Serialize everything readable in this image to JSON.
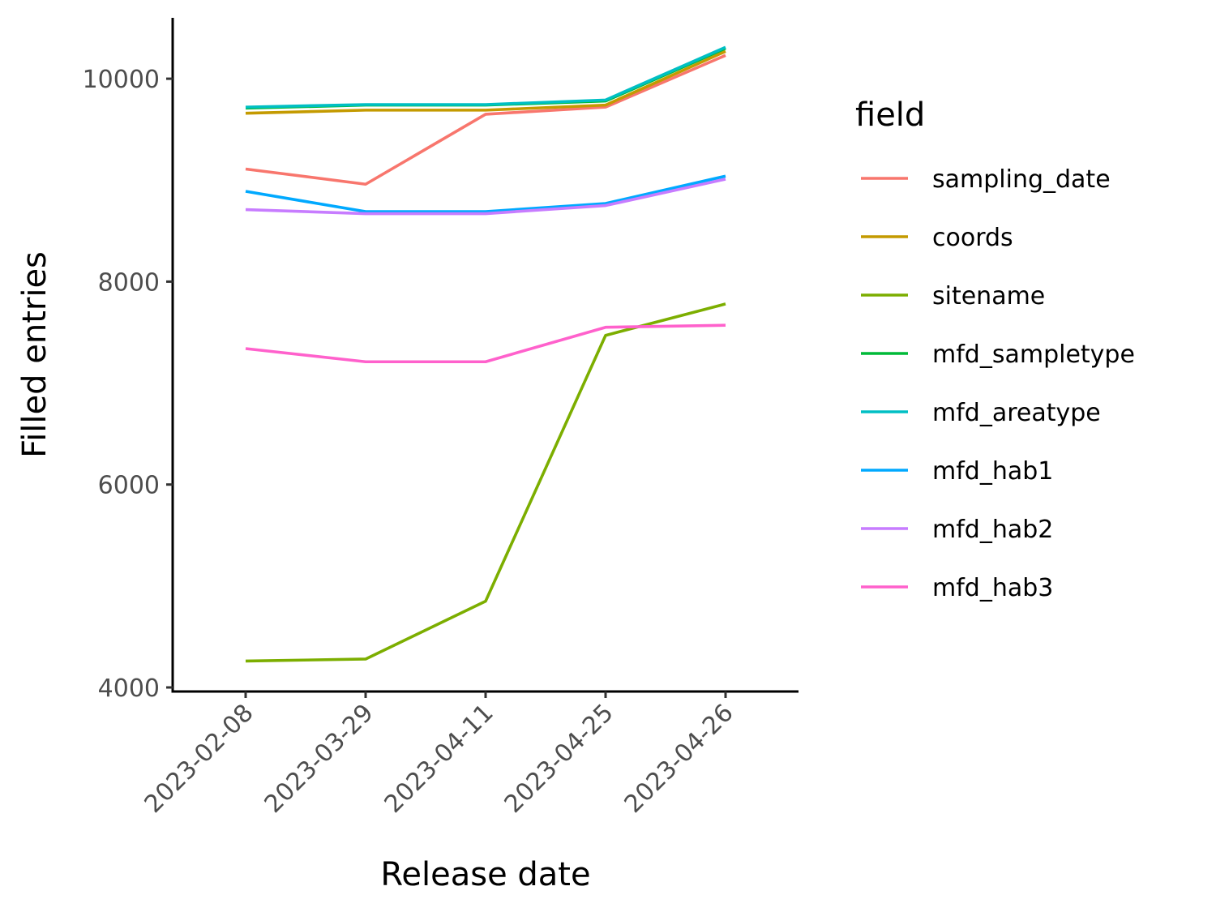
{
  "chart_data": {
    "type": "line",
    "title": "",
    "xlabel": "Release date",
    "ylabel": "Filled entries",
    "categories": [
      "2023-02-08",
      "2023-03-29",
      "2023-04-11",
      "2023-04-25",
      "2023-04-26"
    ],
    "ylim": [
      3960,
      10600
    ],
    "yticks": [
      4000,
      6000,
      8000,
      10000
    ],
    "grid": false,
    "legend": {
      "title": "field",
      "placement": "right"
    },
    "series": [
      {
        "name": "sampling_date",
        "color": "#F8766D",
        "values": [
          9110,
          8960,
          9650,
          9720,
          10230
        ]
      },
      {
        "name": "coords",
        "color": "#C49A00",
        "values": [
          9660,
          9690,
          9690,
          9740,
          10270
        ]
      },
      {
        "name": "sitename",
        "color": "#7CAE00",
        "values": [
          4260,
          4280,
          4850,
          7470,
          7780
        ]
      },
      {
        "name": "mfd_sampletype",
        "color": "#00BA38",
        "values": [
          9710,
          9740,
          9740,
          9780,
          10300
        ]
      },
      {
        "name": "mfd_areatype",
        "color": "#00BFC4",
        "values": [
          9720,
          9745,
          9745,
          9790,
          10310
        ]
      },
      {
        "name": "mfd_hab1",
        "color": "#00A9FF",
        "values": [
          8890,
          8690,
          8690,
          8770,
          9040
        ]
      },
      {
        "name": "mfd_hab2",
        "color": "#C77CFF",
        "values": [
          8710,
          8670,
          8670,
          8750,
          9010
        ]
      },
      {
        "name": "mfd_hab3",
        "color": "#FF61CC",
        "values": [
          7340,
          7210,
          7210,
          7550,
          7570
        ]
      }
    ]
  }
}
